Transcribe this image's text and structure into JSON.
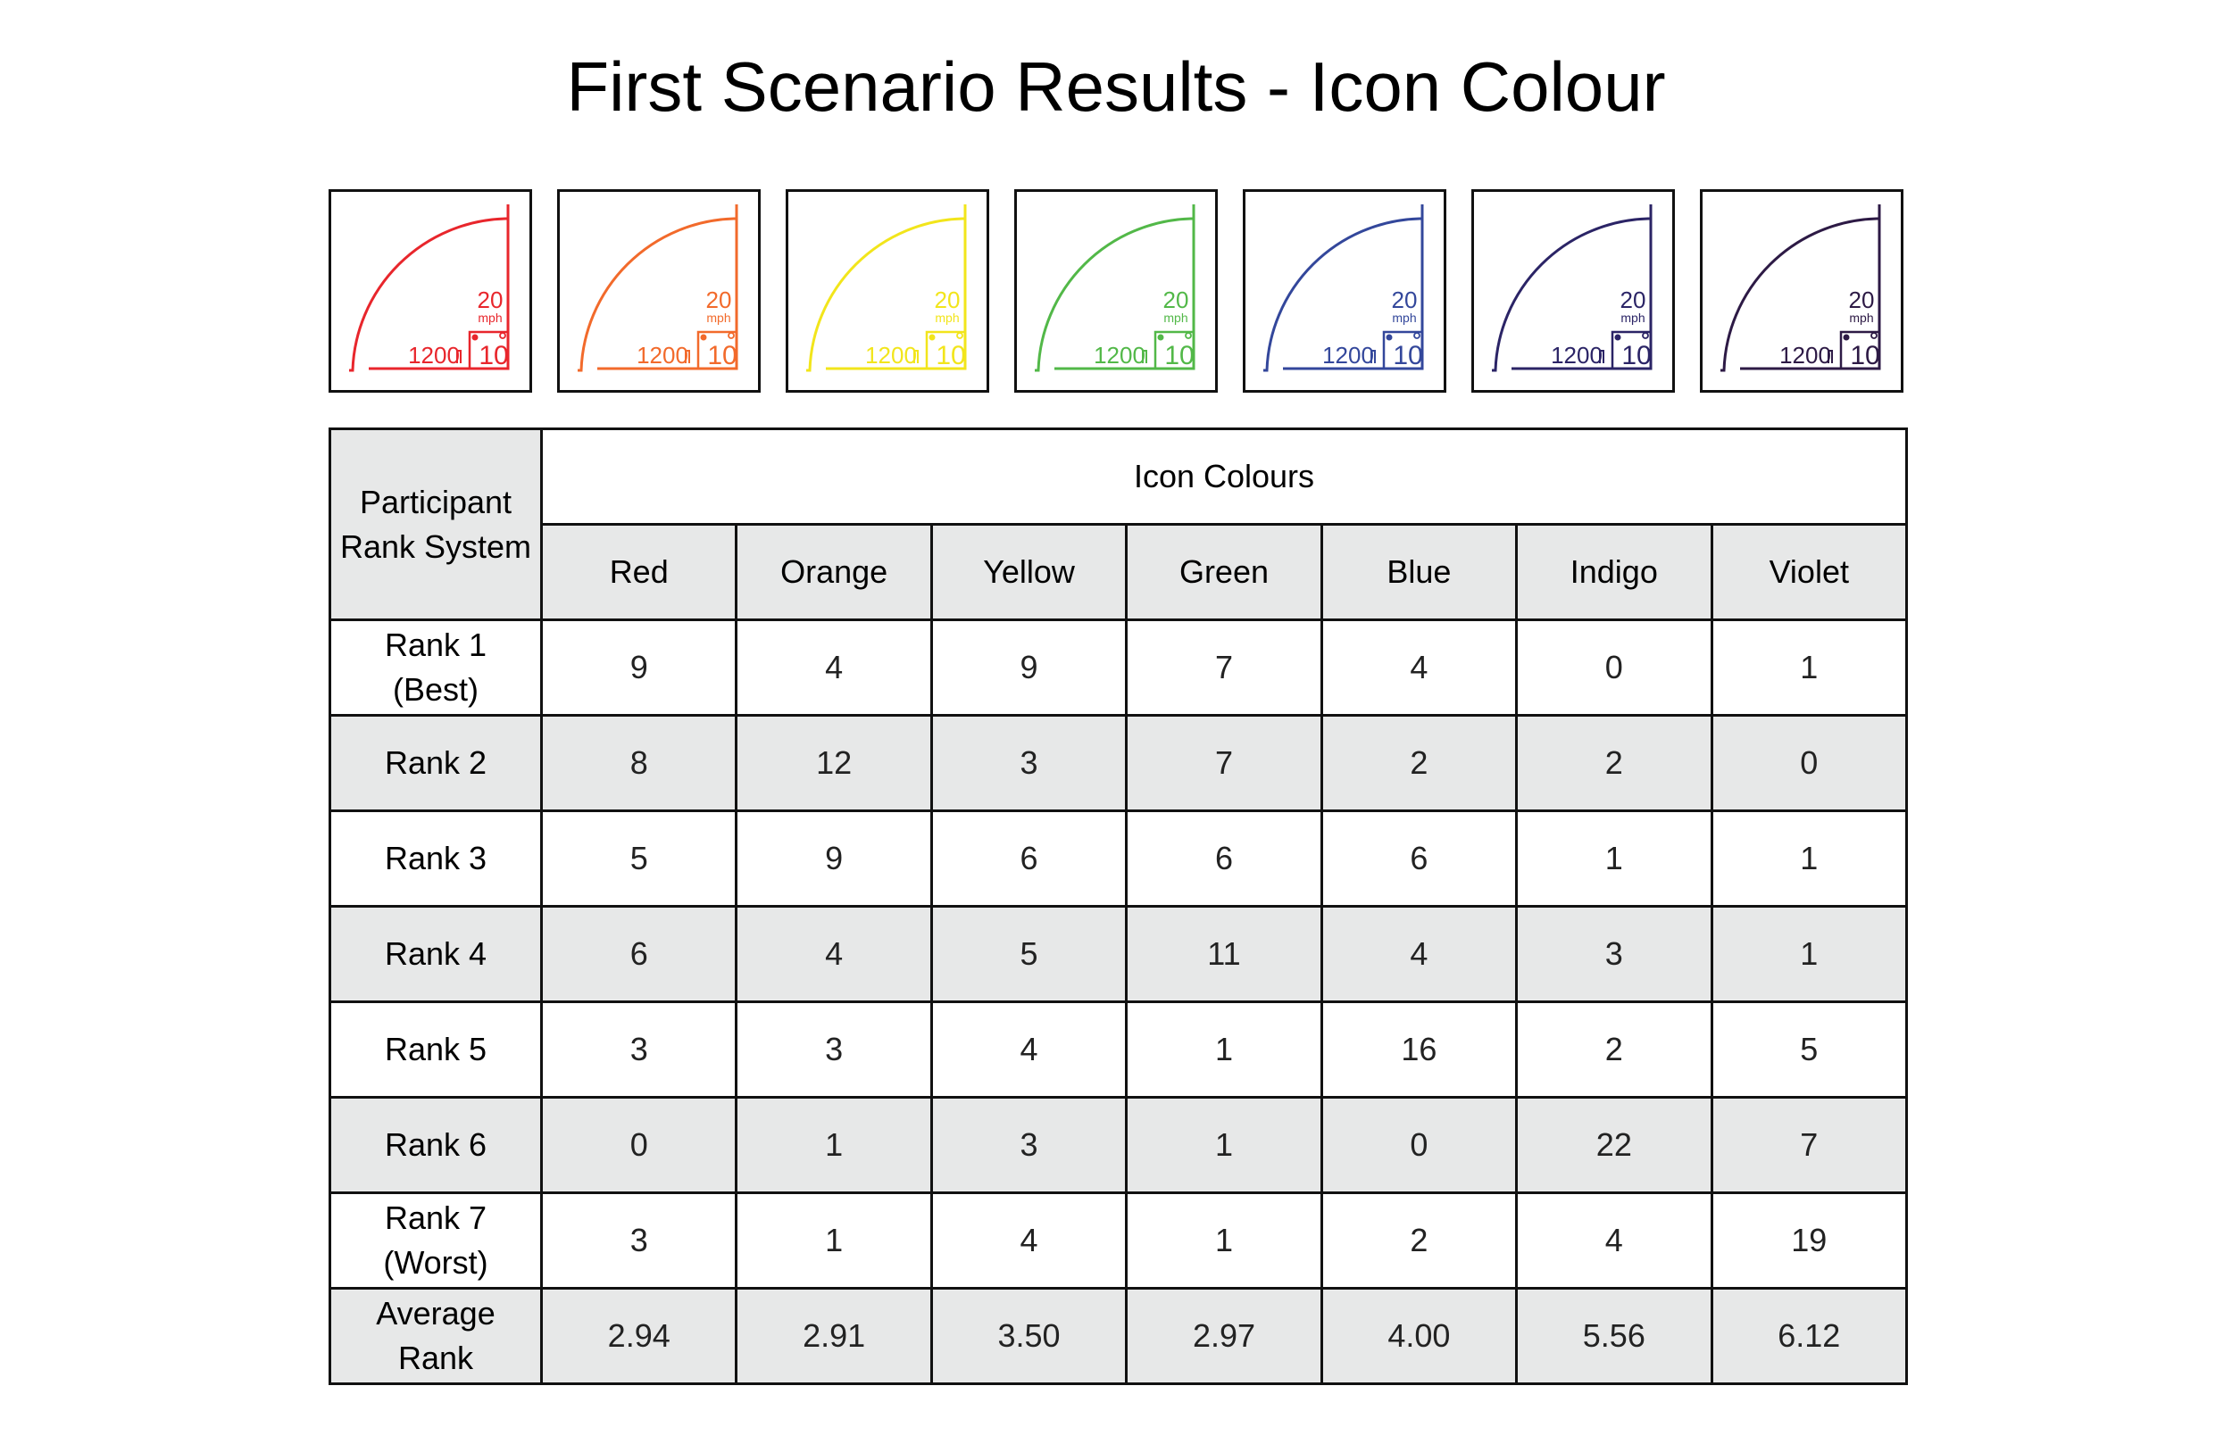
{
  "title": "First Scenario Results - Icon Colour",
  "icons": [
    {
      "name": "red",
      "color": "#e8262c",
      "speed": "20",
      "unit": "mph",
      "distance": "1200",
      "count": "10"
    },
    {
      "name": "orange",
      "color": "#f26a2b",
      "speed": "20",
      "unit": "mph",
      "distance": "1200",
      "count": "10"
    },
    {
      "name": "yellow",
      "color": "#f2e51b",
      "speed": "20",
      "unit": "mph",
      "distance": "1200",
      "count": "10"
    },
    {
      "name": "green",
      "color": "#52b848",
      "speed": "20",
      "unit": "mph",
      "distance": "1200",
      "count": "10"
    },
    {
      "name": "blue",
      "color": "#33479b",
      "speed": "20",
      "unit": "mph",
      "distance": "1200",
      "count": "10"
    },
    {
      "name": "indigo",
      "color": "#2b2466",
      "speed": "20",
      "unit": "mph",
      "distance": "1200",
      "count": "10"
    },
    {
      "name": "violet",
      "color": "#2d1a45",
      "speed": "20",
      "unit": "mph",
      "distance": "1200",
      "count": "10"
    }
  ],
  "chart_data": {
    "type": "table",
    "corner_header": "Participant Rank System",
    "group_header": "Icon Colours",
    "columns": [
      "Red",
      "Orange",
      "Yellow",
      "Green",
      "Blue",
      "Indigo",
      "Violet"
    ],
    "rows": [
      {
        "label_lines": [
          "Rank 1",
          "(Best)"
        ],
        "values": [
          "9",
          "4",
          "9",
          "7",
          "4",
          "0",
          "1"
        ]
      },
      {
        "label_lines": [
          "Rank 2"
        ],
        "values": [
          "8",
          "12",
          "3",
          "7",
          "2",
          "2",
          "0"
        ]
      },
      {
        "label_lines": [
          "Rank 3"
        ],
        "values": [
          "5",
          "9",
          "6",
          "6",
          "6",
          "1",
          "1"
        ]
      },
      {
        "label_lines": [
          "Rank 4"
        ],
        "values": [
          "6",
          "4",
          "5",
          "11",
          "4",
          "3",
          "1"
        ]
      },
      {
        "label_lines": [
          "Rank 5"
        ],
        "values": [
          "3",
          "3",
          "4",
          "1",
          "16",
          "2",
          "5"
        ]
      },
      {
        "label_lines": [
          "Rank 6"
        ],
        "values": [
          "0",
          "1",
          "3",
          "1",
          "0",
          "22",
          "7"
        ]
      },
      {
        "label_lines": [
          "Rank 7",
          "(Worst)"
        ],
        "values": [
          "3",
          "1",
          "4",
          "1",
          "2",
          "4",
          "19"
        ]
      },
      {
        "label_lines": [
          "Average",
          "Rank"
        ],
        "values": [
          "2.94",
          "2.91",
          "3.50",
          "2.97",
          "4.00",
          "5.56",
          "6.12"
        ]
      }
    ]
  }
}
